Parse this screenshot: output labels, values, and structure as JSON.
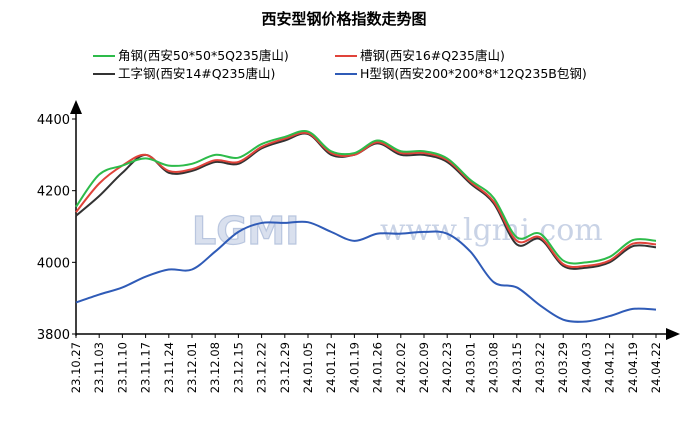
{
  "chart_data": {
    "type": "line",
    "title": "西安型钢价格指数走势图",
    "xlabel": "",
    "ylabel": "",
    "ylim": [
      3800,
      4400
    ],
    "yticks": [
      3800,
      4000,
      4200,
      4400
    ],
    "grid": false,
    "legend_position": "top",
    "watermark": {
      "logo": "LGMI",
      "url": "www.lgmi.com"
    },
    "categories": [
      "23.10.27",
      "23.11.03",
      "23.11.10",
      "23.11.17",
      "23.11.24",
      "23.12.01",
      "23.12.08",
      "23.12.15",
      "23.12.22",
      "23.12.29",
      "24.01.05",
      "24.01.12",
      "24.01.19",
      "24.01.26",
      "24.02.02",
      "24.02.09",
      "24.02.23",
      "24.03.01",
      "24.03.08",
      "24.03.15",
      "24.03.22",
      "24.03.29",
      "24.04.03",
      "24.04.12",
      "24.04.19",
      "24.04.22"
    ],
    "series": [
      {
        "name": "角钢(西安50*50*5Q235唐山)",
        "color": "#2dbb4a",
        "values": [
          4155,
          4245,
          4270,
          4290,
          4270,
          4275,
          4300,
          4292,
          4330,
          4350,
          4365,
          4310,
          4305,
          4340,
          4310,
          4310,
          4290,
          4230,
          4180,
          4070,
          4080,
          4005,
          4000,
          4015,
          4062,
          4060
        ]
      },
      {
        "name": "槽钢(西安16#Q235唐山)",
        "color": "#e0433a",
        "values": [
          4140,
          4220,
          4270,
          4300,
          4255,
          4260,
          4285,
          4280,
          4322,
          4345,
          4360,
          4305,
          4300,
          4335,
          4305,
          4305,
          4285,
          4225,
          4170,
          4060,
          4070,
          3995,
          3990,
          4005,
          4052,
          4050
        ]
      },
      {
        "name": "工字钢(西安14#Q235唐山)",
        "color": "#333333",
        "values": [
          4130,
          4185,
          4250,
          4300,
          4250,
          4255,
          4280,
          4275,
          4318,
          4340,
          4358,
          4300,
          4300,
          4332,
          4300,
          4300,
          4280,
          4220,
          4165,
          4050,
          4065,
          3990,
          3985,
          4000,
          4045,
          4042
        ]
      },
      {
        "name": "H型钢(西安200*200*8*12Q235B包钢)",
        "color": "#2f5bb7",
        "values": [
          3888,
          3910,
          3930,
          3960,
          3980,
          3980,
          4030,
          4085,
          4110,
          4110,
          4112,
          4085,
          4060,
          4080,
          4080,
          4085,
          4080,
          4030,
          3945,
          3930,
          3880,
          3840,
          3835,
          3850,
          3870,
          3868
        ]
      }
    ]
  }
}
